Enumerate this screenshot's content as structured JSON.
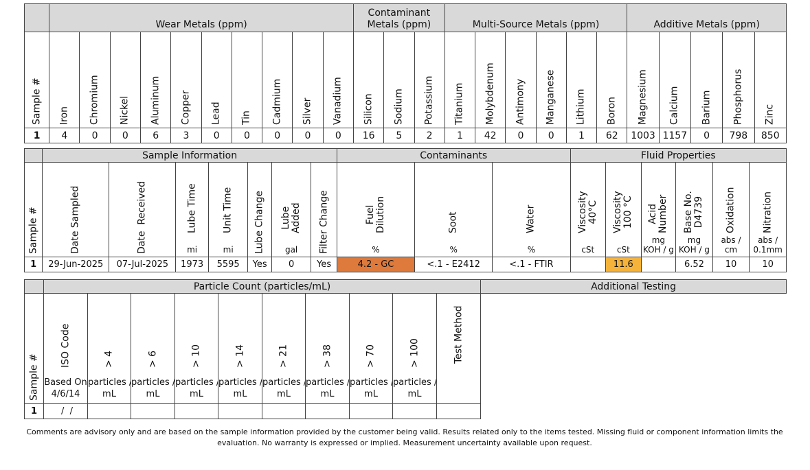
{
  "table1": {
    "groups": {
      "sample": "",
      "wear": "Wear Metals (ppm)",
      "contaminant": "Contaminant Metals (ppm)",
      "multi": "Multi-Source Metals (ppm)",
      "additive": "Additive Metals (ppm)"
    },
    "columns": [
      "Sample #",
      "Iron",
      "Chromium",
      "Nickel",
      "Aluminum",
      "Copper",
      "Lead",
      "Tin",
      "Cadmium",
      "Silver",
      "Vanadium",
      "Silicon",
      "Sodium",
      "Potassium",
      "Titanium",
      "Molybdenum",
      "Antimony",
      "Manganese",
      "Lithium",
      "Boron",
      "Magnesium",
      "Calcium",
      "Barium",
      "Phosphorus",
      "Zinc"
    ],
    "row": [
      "1",
      "4",
      "0",
      "0",
      "6",
      "3",
      "0",
      "0",
      "0",
      "0",
      "0",
      "16",
      "5",
      "2",
      "1",
      "42",
      "0",
      "0",
      "1",
      "62",
      "1003",
      "1157",
      "0",
      "798",
      "850"
    ]
  },
  "table2": {
    "groups": {
      "sample_info": "Sample Information",
      "contaminants": "Contaminants",
      "fluid": "Fluid Properties"
    },
    "columns": [
      {
        "label": "Sample #",
        "unit": ""
      },
      {
        "label": "Date Sampled",
        "unit": ""
      },
      {
        "label": "Date  Received",
        "unit": ""
      },
      {
        "label": "Lube Time",
        "unit": "mi"
      },
      {
        "label": "Unit Time",
        "unit": "mi"
      },
      {
        "label": "Lube Change",
        "unit": ""
      },
      {
        "label": "Lube\nAdded",
        "unit": "gal"
      },
      {
        "label": "Filter Change",
        "unit": ""
      },
      {
        "label": "Fuel\nDilution",
        "unit": "%"
      },
      {
        "label": "Soot",
        "unit": "%"
      },
      {
        "label": "Water",
        "unit": "%"
      },
      {
        "label": "Viscosity\n40°C",
        "unit": "cSt"
      },
      {
        "label": "Viscosity\n100 °C",
        "unit": "cSt"
      },
      {
        "label": "Acid\nNumber",
        "unit": "mg\nKOH / g"
      },
      {
        "label": "Base No.\nD4739",
        "unit": "mg\nKOH / g"
      },
      {
        "label": "Oxidation",
        "unit": "abs /\ncm"
      },
      {
        "label": "Nitration",
        "unit": "abs /\n0.1mm"
      }
    ],
    "row": [
      "1",
      "29-Jun-2025",
      "07-Jul-2025",
      "1973",
      "5595",
      "Yes",
      "0",
      "Yes",
      "4.2 - GC",
      "<.1 - E2412",
      "<.1 - FTIR",
      "",
      "11.6",
      "",
      "6.52",
      "10",
      "10"
    ],
    "colors": {
      "fuel_dilution": "#dd7a3c",
      "viscosity_100": "#f5b33b"
    }
  },
  "table3": {
    "groups": {
      "particle": "Particle Count (particles/mL)",
      "additional": "Additional Testing"
    },
    "columns": [
      {
        "label": "Sample #",
        "unit": ""
      },
      {
        "label": "ISO Code",
        "unit": "Based On\n4/6/14"
      },
      {
        "label": "> 4",
        "unit": "particles /\nmL"
      },
      {
        "label": "> 6",
        "unit": "particles /\nmL"
      },
      {
        "label": "> 10",
        "unit": "particles /\nmL"
      },
      {
        "label": "> 14",
        "unit": "particles /\nmL"
      },
      {
        "label": "> 21",
        "unit": "particles /\nmL"
      },
      {
        "label": "> 38",
        "unit": "particles /\nmL"
      },
      {
        "label": "> 70",
        "unit": "particles /\nmL"
      },
      {
        "label": "> 100",
        "unit": "particles /\nmL"
      },
      {
        "label": "Test Method",
        "unit": ""
      }
    ],
    "row": [
      "1",
      " /  /",
      "",
      "",
      "",
      "",
      "",
      "",
      "",
      "",
      ""
    ]
  },
  "footer": {
    "line1": "Comments are advisory only and are based on the sample information provided by the customer being valid.  Results related only to the items tested.  Missing fluid or component information limits the",
    "line2": "evaluation.  No warranty is expressed or implied.  Measurement uncertainty available upon request."
  }
}
